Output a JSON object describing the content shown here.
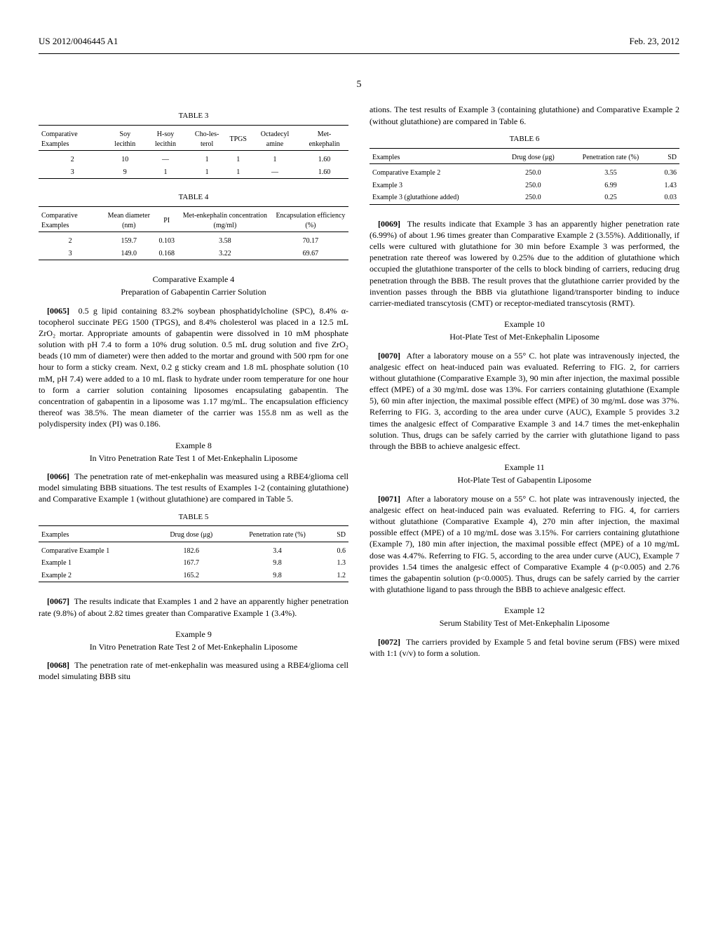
{
  "header": {
    "left": "US 2012/0046445 A1",
    "right": "Feb. 23, 2012"
  },
  "pageNumber": "5",
  "table3": {
    "caption": "TABLE 3",
    "headers": [
      "Comparative Examples",
      "Soy lecithin",
      "H-soy lecithin",
      "Cho-les-terol",
      "TPGS",
      "Octadecyl amine",
      "Met-enkephalin"
    ],
    "rows": [
      [
        "2",
        "10",
        "—",
        "1",
        "1",
        "1",
        "1.60"
      ],
      [
        "3",
        "9",
        "1",
        "1",
        "1",
        "—",
        "1.60"
      ]
    ]
  },
  "table4": {
    "caption": "TABLE 4",
    "headers": [
      "Comparative Examples",
      "Mean diameter (nm)",
      "PI",
      "Met-enkephalin concentration (mg/ml)",
      "Encapsulation efficiency (%)"
    ],
    "rows": [
      [
        "2",
        "159.7",
        "0.103",
        "3.58",
        "70.17"
      ],
      [
        "3",
        "149.0",
        "0.168",
        "3.22",
        "69.67"
      ]
    ]
  },
  "compEx4": {
    "title": "Comparative Example 4",
    "subtitle": "Preparation of Gabapentin Carrier Solution",
    "paraNum": "[0065]",
    "text": "0.5 g lipid containing 83.2% soybean phosphatidylcholine (SPC), 8.4% α-tocopherol succinate PEG 1500 (TPGS), and 8.4% cholesterol was placed in a 12.5 mL ZrO₂ mortar. Appropriate amounts of gabapentin were dissolved in 10 mM phosphate solution with pH 7.4 to form a 10% drug solution. 0.5 mL drug solution and five ZrO₂ beads (10 mm of diameter) were then added to the mortar and ground with 500 rpm for one hour to form a sticky cream. Next, 0.2 g sticky cream and 1.8 mL phosphate solution (10 mM, pH 7.4) were added to a 10 mL flask to hydrate under room temperature for one hour to form a carrier solution containing liposomes encapsulating gabapentin. The concentration of gabapentin in a liposome was 1.17 mg/mL. The encapsulation efficiency thereof was 38.5%. The mean diameter of the carrier was 155.8 nm as well as the polydispersity index (PI) was 0.186."
  },
  "ex8": {
    "title": "Example 8",
    "subtitle": "In Vitro Penetration Rate Test 1 of Met-Enkephalin Liposome",
    "paraNum": "[0066]",
    "text": "The penetration rate of met-enkephalin was measured using a RBE4/glioma cell model simulating BBB situations. The test results of Examples 1-2 (containing glutathione) and Comparative Example 1 (without glutathione) are compared in Table 5."
  },
  "table5": {
    "caption": "TABLE 5",
    "headers": [
      "Examples",
      "Drug dose (μg)",
      "Penetration rate (%)",
      "SD"
    ],
    "rows": [
      [
        "Comparative Example 1",
        "182.6",
        "3.4",
        "0.6"
      ],
      [
        "Example 1",
        "167.7",
        "9.8",
        "1.3"
      ],
      [
        "Example 2",
        "165.2",
        "9.8",
        "1.2"
      ]
    ]
  },
  "para67": {
    "paraNum": "[0067]",
    "text": "The results indicate that Examples 1 and 2 have an apparently higher penetration rate (9.8%) of about 2.82 times greater than Comparative Example 1 (3.4%)."
  },
  "ex9": {
    "title": "Example 9",
    "subtitle": "In Vitro Penetration Rate Test 2 of Met-Enkephalin Liposome",
    "paraNum": "[0068]",
    "text": "The penetration rate of met-enkephalin was measured using a RBE4/glioma cell model simulating BBB situ"
  },
  "col2intro": "ations. The test results of Example 3 (containing glutathione) and Comparative Example 2 (without glutathione) are compared in Table 6.",
  "table6": {
    "caption": "TABLE 6",
    "headers": [
      "Examples",
      "Drug dose (μg)",
      "Penetration rate (%)",
      "SD"
    ],
    "rows": [
      [
        "Comparative Example 2",
        "250.0",
        "3.55",
        "0.36"
      ],
      [
        "Example 3",
        "250.0",
        "6.99",
        "1.43"
      ],
      [
        "Example 3 (glutathione added)",
        "250.0",
        "0.25",
        "0.03"
      ]
    ]
  },
  "para69": {
    "paraNum": "[0069]",
    "text": "The results indicate that Example 3 has an apparently higher penetration rate (6.99%) of about 1.96 times greater than Comparative Example 2 (3.55%). Additionally, if cells were cultured with glutathione for 30 min before Example 3 was performed, the penetration rate thereof was lowered by 0.25% due to the addition of glutathione which occupied the glutathione transporter of the cells to block binding of carriers, reducing drug penetration through the BBB. The result proves that the glutathione carrier provided by the invention passes through the BBB via glutathione ligand/transporter binding to induce carrier-mediated transcytosis (CMT) or receptor-mediated transcytosis (RMT)."
  },
  "ex10": {
    "title": "Example 10",
    "subtitle": "Hot-Plate Test of Met-Enkephalin Liposome",
    "paraNum": "[0070]",
    "text": "After a laboratory mouse on a 55° C. hot plate was intravenously injected, the analgesic effect on heat-induced pain was evaluated. Referring to FIG. 2, for carriers without glutathione (Comparative Example 3), 90 min after injection, the maximal possible effect (MPE) of a 30 mg/mL dose was 13%. For carriers containing glutathione (Example 5), 60 min after injection, the maximal possible effect (MPE) of 30 mg/mL dose was 37%. Referring to FIG. 3, according to the area under curve (AUC), Example 5 provides 3.2 times the analgesic effect of Comparative Example 3 and 14.7 times the met-enkephalin solution. Thus, drugs can be safely carried by the carrier with glutathione ligand to pass through the BBB to achieve analgesic effect."
  },
  "ex11": {
    "title": "Example 11",
    "subtitle": "Hot-Plate Test of Gabapentin Liposome",
    "paraNum": "[0071]",
    "text": "After a laboratory mouse on a 55° C. hot plate was intravenously injected, the analgesic effect on heat-induced pain was evaluated. Referring to FIG. 4, for carriers without glutathione (Comparative Example 4), 270 min after injection, the maximal possible effect (MPE) of a 10 mg/mL dose was 3.15%. For carriers containing glutathione (Example 7), 180 min after injection, the maximal possible effect (MPE) of a 10 mg/mL dose was 4.47%. Referring to FIG. 5, according to the area under curve (AUC), Example 7 provides 1.54 times the analgesic effect of Comparative Example 4 (p<0.005) and 2.76 times the gabapentin solution (p<0.0005). Thus, drugs can be safely carried by the carrier with glutathione ligand to pass through the BBB to achieve analgesic effect."
  },
  "ex12": {
    "title": "Example 12",
    "subtitle": "Serum Stability Test of Met-Enkephalin Liposome",
    "paraNum": "[0072]",
    "text": "The carriers provided by Example 5 and fetal bovine serum (FBS) were mixed with 1:1 (v/v) to form a solution."
  }
}
